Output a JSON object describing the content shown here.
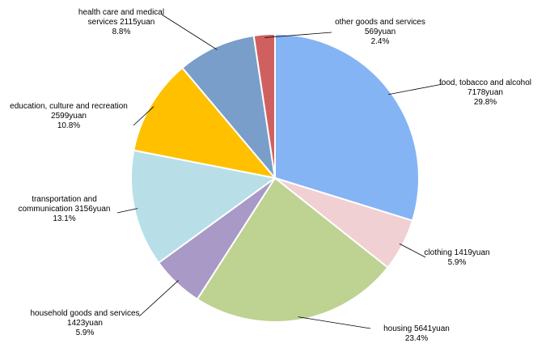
{
  "chart_data": {
    "type": "pie",
    "categories": [
      "food, tobacco and alcohol",
      "clothing",
      "housing",
      "household goods and services",
      "transportation and communication",
      "education, culture and recreation",
      "health care and medical services",
      "other goods and services"
    ],
    "values": [
      7178,
      1419,
      5641,
      1423,
      3156,
      2599,
      2115,
      569
    ],
    "value_labels": [
      "7178yuan",
      "1419yuan",
      "5641yuan",
      "1423yuan",
      "3156yuan",
      "2599yuan",
      "2115yuan",
      "569yuan"
    ],
    "percent_labels": [
      "29.8%",
      "5.9%",
      "23.4%",
      "5.9%",
      "13.1%",
      "10.8%",
      "8.8%",
      "2.4%"
    ],
    "colors": [
      "#84b4f4",
      "#f0d0d2",
      "#bed292",
      "#a999c6",
      "#b8dfe8",
      "#ffc000",
      "#789ec9",
      "#d0605f"
    ]
  }
}
